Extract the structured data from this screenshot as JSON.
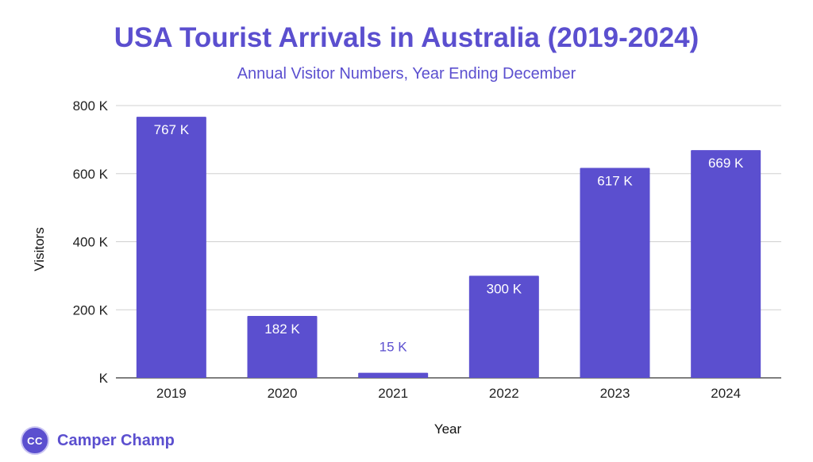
{
  "chart_data": {
    "type": "bar",
    "title": "USA Tourist Arrivals in Australia (2019-2024)",
    "subtitle": "Annual Visitor Numbers, Year Ending December",
    "xlabel": "Year",
    "ylabel": "Visitors",
    "categories": [
      "2019",
      "2020",
      "2021",
      "2022",
      "2023",
      "2024"
    ],
    "values": [
      767,
      182,
      15,
      300,
      617,
      669
    ],
    "data_labels": [
      "767 K",
      "182 K",
      "15 K",
      "300 K",
      "617 K",
      "669 K"
    ],
    "ylim": [
      0,
      800
    ],
    "yticks": [
      0,
      200,
      400,
      600,
      800
    ],
    "ytick_labels": [
      "K",
      "200 K",
      "400 K",
      "600 K",
      "800 K"
    ],
    "grid": true,
    "bar_color": "#5b4fcf"
  },
  "brand": {
    "logo_text": "CC",
    "name": "Camper Champ"
  }
}
